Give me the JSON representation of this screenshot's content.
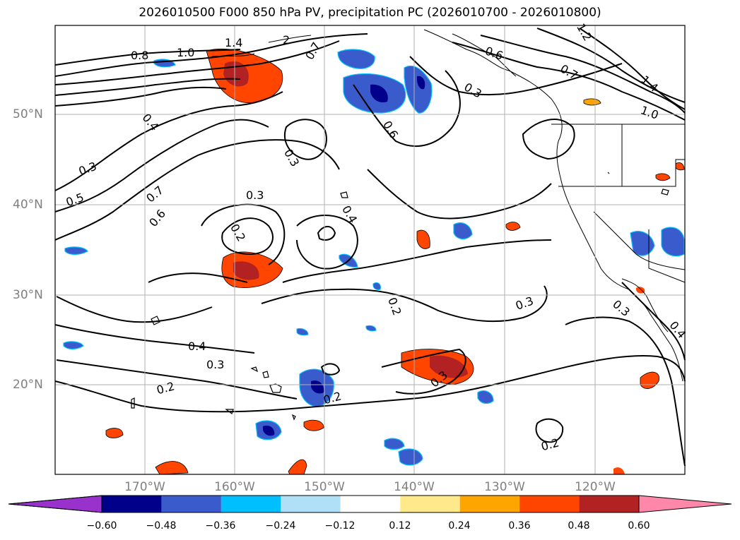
{
  "title": "2026010500 F000 850 hPa PV, precipitation PC (2026010700 - 2026010800)",
  "lat_labels": [
    "50°N",
    "40°N",
    "30°N",
    "20°N"
  ],
  "lon_labels": [
    "170°W",
    "160°W",
    "150°W",
    "140°W",
    "130°W",
    "120°W"
  ],
  "colorbar": {
    "ticks": [
      "−0.60",
      "−0.48",
      "−0.36",
      "−0.24",
      "−0.12",
      "0.12",
      "0.24",
      "0.36",
      "0.48",
      "0.60"
    ],
    "colors": [
      "#9932cc",
      "#00008b",
      "#3a5bcc",
      "#00bfff",
      "#b0e0f8",
      "#ffffff",
      "#ffe98a",
      "#ffa500",
      "#ff4500",
      "#b22222",
      "#ff88aa"
    ]
  },
  "contour_labels": [
    "0.8",
    "1.0",
    "1.4",
    "2",
    "0.7",
    "0.6",
    "1.2",
    "1.4",
    "1.0",
    "0.7",
    "0.3",
    "0.6",
    "0.4",
    "0.3",
    "0.5",
    "0.7",
    "0.6",
    "0.3",
    "0.3",
    "0.2",
    "0.4",
    "0.2",
    "0.3",
    "0.3",
    "0.4",
    "0.3",
    "0.2",
    "0.2",
    "0.3",
    "0.2",
    "0.4"
  ]
}
